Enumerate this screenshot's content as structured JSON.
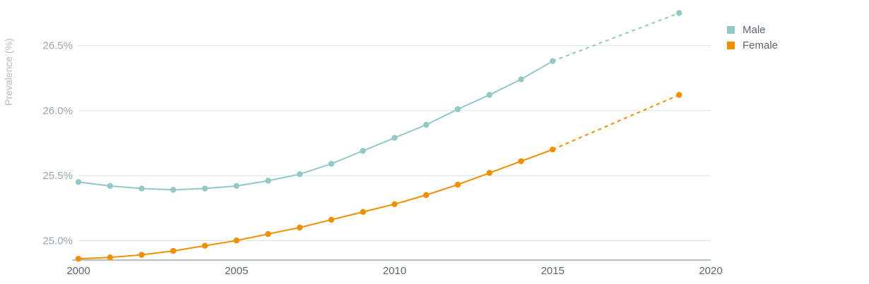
{
  "chart_data": {
    "type": "line",
    "ylabel": "Prevalence (%)",
    "xlim": [
      2000,
      2020
    ],
    "ylim": [
      24.85,
      26.85
    ],
    "x_ticks": [
      2000,
      2005,
      2010,
      2015,
      2020
    ],
    "y_ticks": [
      25.0,
      25.5,
      26.0,
      26.5
    ],
    "y_tick_labels": [
      "25.0%",
      "25.5%",
      "26.0%",
      "26.5%"
    ],
    "grid": "horizontal",
    "legend_position": "top-right",
    "series": [
      {
        "name": "Male",
        "color": "#92c9c7",
        "x": [
          2000,
          2001,
          2002,
          2003,
          2004,
          2005,
          2006,
          2007,
          2008,
          2009,
          2010,
          2011,
          2012,
          2013,
          2014,
          2015
        ],
        "values": [
          25.45,
          25.42,
          25.4,
          25.39,
          25.4,
          25.42,
          25.46,
          25.51,
          25.59,
          25.69,
          25.79,
          25.89,
          26.01,
          26.12,
          26.24,
          26.38
        ],
        "projection": {
          "x": [
            2015,
            2019
          ],
          "values": [
            26.38,
            26.75
          ]
        }
      },
      {
        "name": "Female",
        "color": "#f18f01",
        "x": [
          2000,
          2001,
          2002,
          2003,
          2004,
          2005,
          2006,
          2007,
          2008,
          2009,
          2010,
          2011,
          2012,
          2013,
          2014,
          2015
        ],
        "values": [
          24.86,
          24.87,
          24.89,
          24.92,
          24.96,
          25.0,
          25.05,
          25.1,
          25.16,
          25.22,
          25.28,
          25.35,
          25.43,
          25.52,
          25.61,
          25.7
        ],
        "projection": {
          "x": [
            2015,
            2019
          ],
          "values": [
            25.7,
            26.12
          ]
        }
      }
    ]
  }
}
